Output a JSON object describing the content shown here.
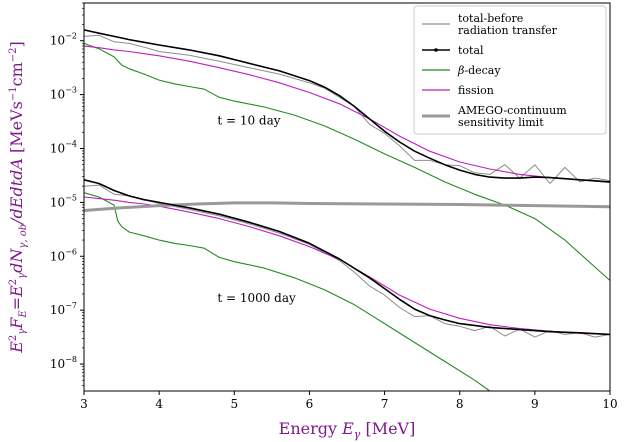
{
  "chart_data": {
    "type": "line",
    "xlabel": "Energy E_γ [MeV]",
    "ylabel": "E_γ²F_E=E_γ²dN_γ,ob/dEdtdA [MeVs⁻¹cm⁻²]",
    "xlim": [
      3,
      10
    ],
    "ylim_log10": [
      -8.5,
      -1.3
    ],
    "y_scale": "log",
    "x_ticks": [
      "3",
      "4",
      "5",
      "6",
      "7",
      "8",
      "9",
      "10"
    ],
    "y_ticks": [
      {
        "base": "10",
        "exp": "-8",
        "log": -8
      },
      {
        "base": "10",
        "exp": "-7",
        "log": -7
      },
      {
        "base": "10",
        "exp": "-6",
        "log": -6
      },
      {
        "base": "10",
        "exp": "-5",
        "log": -5
      },
      {
        "base": "10",
        "exp": "-4",
        "log": -4
      },
      {
        "base": "10",
        "exp": "-3",
        "log": -3
      },
      {
        "base": "10",
        "exp": "-2",
        "log": -2
      }
    ],
    "annotations": [
      {
        "text": "t = 10 day",
        "x": 5.2,
        "y_log10": -3.55
      },
      {
        "text": "t = 1000 day",
        "x": 5.2,
        "y_log10": -6.85
      }
    ],
    "legend": {
      "position": "top-right",
      "entries": [
        {
          "label": [
            "total-before",
            "radiation transfer"
          ],
          "color": "#8c8c8c",
          "width": 1.2
        },
        {
          "label": [
            "total"
          ],
          "color": "#000000",
          "width": 1.4,
          "marker": true
        },
        {
          "label": [
            "β-decay"
          ],
          "color": "#228b22",
          "width": 1.2
        },
        {
          "label": [
            "fission"
          ],
          "color": "#bf1fbf",
          "width": 1.2
        },
        {
          "label": [
            "AMEGO-continuum",
            "sensitivity limit"
          ],
          "color": "#999999",
          "width": 3
        }
      ]
    },
    "series": [
      {
        "key": "total-before radiation transfer",
        "group": "t = 10 day",
        "color": "#8c8c8c",
        "width": 1.0,
        "x": [
          3.0,
          3.2,
          3.4,
          3.6,
          3.8,
          4.0,
          4.4,
          4.8,
          5.2,
          5.6,
          6.0,
          6.2,
          6.4,
          6.6,
          6.8,
          7.0,
          7.2,
          7.4,
          7.6,
          7.8,
          8.0,
          8.2,
          8.4,
          8.6,
          8.8,
          9.0,
          9.2,
          9.4,
          9.6,
          9.8,
          10.0
        ],
        "y_log10": [
          -1.92,
          -1.9,
          -2.02,
          -2.05,
          -2.12,
          -2.2,
          -2.27,
          -2.38,
          -2.5,
          -2.62,
          -2.78,
          -2.88,
          -3.05,
          -3.22,
          -3.55,
          -3.72,
          -3.95,
          -4.22,
          -4.22,
          -4.3,
          -4.32,
          -4.45,
          -4.48,
          -4.3,
          -4.55,
          -4.3,
          -4.65,
          -4.35,
          -4.62,
          -4.55,
          -4.6
        ]
      },
      {
        "key": "total",
        "group": "t = 10 day",
        "color": "#000000",
        "width": 1.6,
        "x": [
          3.0,
          3.2,
          3.4,
          3.6,
          3.8,
          4.0,
          4.4,
          4.8,
          5.2,
          5.6,
          6.0,
          6.2,
          6.4,
          6.6,
          6.8,
          7.0,
          7.2,
          7.4,
          7.6,
          7.8,
          8.0,
          8.2,
          8.4,
          8.6,
          8.8,
          9.0,
          9.2,
          9.4,
          9.6,
          9.8,
          10.0
        ],
        "y_log10": [
          -1.8,
          -1.86,
          -1.92,
          -1.98,
          -2.03,
          -2.08,
          -2.17,
          -2.28,
          -2.42,
          -2.56,
          -2.74,
          -2.86,
          -3.02,
          -3.22,
          -3.45,
          -3.68,
          -3.88,
          -4.05,
          -4.18,
          -4.3,
          -4.4,
          -4.48,
          -4.53,
          -4.55,
          -4.55,
          -4.53,
          -4.54,
          -4.56,
          -4.58,
          -4.6,
          -4.62
        ]
      },
      {
        "key": "β-decay",
        "group": "t = 10 day",
        "color": "#228b22",
        "width": 1.1,
        "x": [
          3.0,
          3.2,
          3.4,
          3.5,
          3.6,
          3.8,
          4.0,
          4.2,
          4.4,
          4.6,
          4.8,
          5.0,
          5.4,
          5.8,
          6.2,
          6.6,
          7.0,
          7.4,
          7.8,
          8.2,
          8.6,
          9.0,
          9.4,
          9.8,
          10.0
        ],
        "y_log10": [
          -2.05,
          -2.15,
          -2.3,
          -2.45,
          -2.52,
          -2.62,
          -2.73,
          -2.8,
          -2.85,
          -2.9,
          -3.05,
          -3.12,
          -3.23,
          -3.38,
          -3.58,
          -3.83,
          -4.1,
          -4.35,
          -4.62,
          -4.85,
          -5.05,
          -5.3,
          -5.7,
          -6.2,
          -6.45
        ]
      },
      {
        "key": "fission",
        "group": "t = 10 day",
        "color": "#bf1fbf",
        "width": 1.1,
        "x": [
          3.0,
          3.2,
          3.4,
          3.6,
          3.8,
          4.0,
          4.4,
          4.8,
          5.2,
          5.6,
          6.0,
          6.4,
          6.8,
          7.2,
          7.6,
          8.0,
          8.4,
          8.8,
          9.2,
          9.6,
          10.0
        ],
        "y_log10": [
          -2.1,
          -2.13,
          -2.17,
          -2.2,
          -2.24,
          -2.28,
          -2.38,
          -2.5,
          -2.63,
          -2.78,
          -2.96,
          -3.17,
          -3.45,
          -3.77,
          -4.05,
          -4.25,
          -4.38,
          -4.48,
          -4.54,
          -4.58,
          -4.63
        ]
      },
      {
        "key": "total-before radiation transfer",
        "group": "t = 1000 day",
        "color": "#8c8c8c",
        "width": 1.0,
        "x": [
          3.0,
          3.2,
          3.4,
          3.6,
          3.8,
          4.0,
          4.4,
          4.8,
          5.2,
          5.6,
          6.0,
          6.4,
          6.6,
          6.8,
          7.0,
          7.2,
          7.4,
          7.6,
          7.8,
          8.0,
          8.2,
          8.4,
          8.6,
          8.8,
          9.0,
          9.2,
          9.4,
          9.6,
          9.8,
          10.0
        ],
        "y_log10": [
          -4.7,
          -4.68,
          -4.85,
          -4.88,
          -4.95,
          -5.02,
          -5.13,
          -5.25,
          -5.4,
          -5.57,
          -5.78,
          -6.08,
          -6.3,
          -6.55,
          -6.72,
          -6.95,
          -7.12,
          -7.1,
          -7.25,
          -7.3,
          -7.38,
          -7.3,
          -7.48,
          -7.35,
          -7.5,
          -7.38,
          -7.45,
          -7.42,
          -7.5,
          -7.45
        ]
      },
      {
        "key": "total",
        "group": "t = 1000 day",
        "color": "#000000",
        "width": 1.6,
        "x": [
          3.0,
          3.2,
          3.4,
          3.6,
          3.8,
          4.0,
          4.4,
          4.8,
          5.2,
          5.6,
          6.0,
          6.4,
          6.8,
          7.0,
          7.2,
          7.4,
          7.6,
          7.8,
          8.0,
          8.4,
          8.8,
          9.2,
          9.6,
          10.0
        ],
        "y_log10": [
          -4.58,
          -4.65,
          -4.78,
          -4.88,
          -4.95,
          -5.0,
          -5.1,
          -5.22,
          -5.37,
          -5.54,
          -5.76,
          -6.05,
          -6.4,
          -6.6,
          -6.8,
          -6.98,
          -7.1,
          -7.18,
          -7.25,
          -7.32,
          -7.36,
          -7.4,
          -7.42,
          -7.45
        ]
      },
      {
        "key": "β-decay",
        "group": "t = 1000 day",
        "color": "#228b22",
        "width": 1.1,
        "x": [
          3.0,
          3.2,
          3.4,
          3.45,
          3.5,
          3.6,
          3.8,
          4.0,
          4.2,
          4.4,
          4.6,
          4.8,
          5.0,
          5.4,
          5.8,
          6.2,
          6.6,
          7.0,
          7.4,
          7.8,
          8.2,
          8.4
        ],
        "y_log10": [
          -4.82,
          -4.9,
          -5.05,
          -5.35,
          -5.45,
          -5.55,
          -5.62,
          -5.7,
          -5.76,
          -5.8,
          -5.85,
          -6.02,
          -6.1,
          -6.22,
          -6.4,
          -6.62,
          -6.9,
          -7.25,
          -7.6,
          -7.95,
          -8.3,
          -8.5
        ]
      },
      {
        "key": "fission",
        "group": "t = 1000 day",
        "color": "#bf1fbf",
        "width": 1.1,
        "x": [
          3.0,
          3.2,
          3.4,
          3.6,
          3.8,
          4.0,
          4.4,
          4.8,
          5.2,
          5.6,
          6.0,
          6.4,
          6.8,
          7.2,
          7.6,
          8.0,
          8.4,
          8.8,
          9.2,
          9.6,
          10.0
        ],
        "y_log10": [
          -4.9,
          -4.93,
          -4.96,
          -5.0,
          -5.03,
          -5.07,
          -5.18,
          -5.3,
          -5.45,
          -5.62,
          -5.82,
          -6.06,
          -6.38,
          -6.72,
          -6.98,
          -7.15,
          -7.27,
          -7.34,
          -7.39,
          -7.43,
          -7.45
        ]
      },
      {
        "key": "AMEGO-continuum sensitivity limit",
        "group": "",
        "color": "#999999",
        "width": 3,
        "x": [
          3.0,
          3.5,
          4.0,
          4.5,
          5.0,
          5.5,
          6.0,
          7.0,
          8.0,
          9.0,
          10.0
        ],
        "y_log10": [
          -5.15,
          -5.1,
          -5.06,
          -5.03,
          -5.01,
          -5.01,
          -5.02,
          -5.03,
          -5.04,
          -5.06,
          -5.08
        ]
      }
    ]
  }
}
